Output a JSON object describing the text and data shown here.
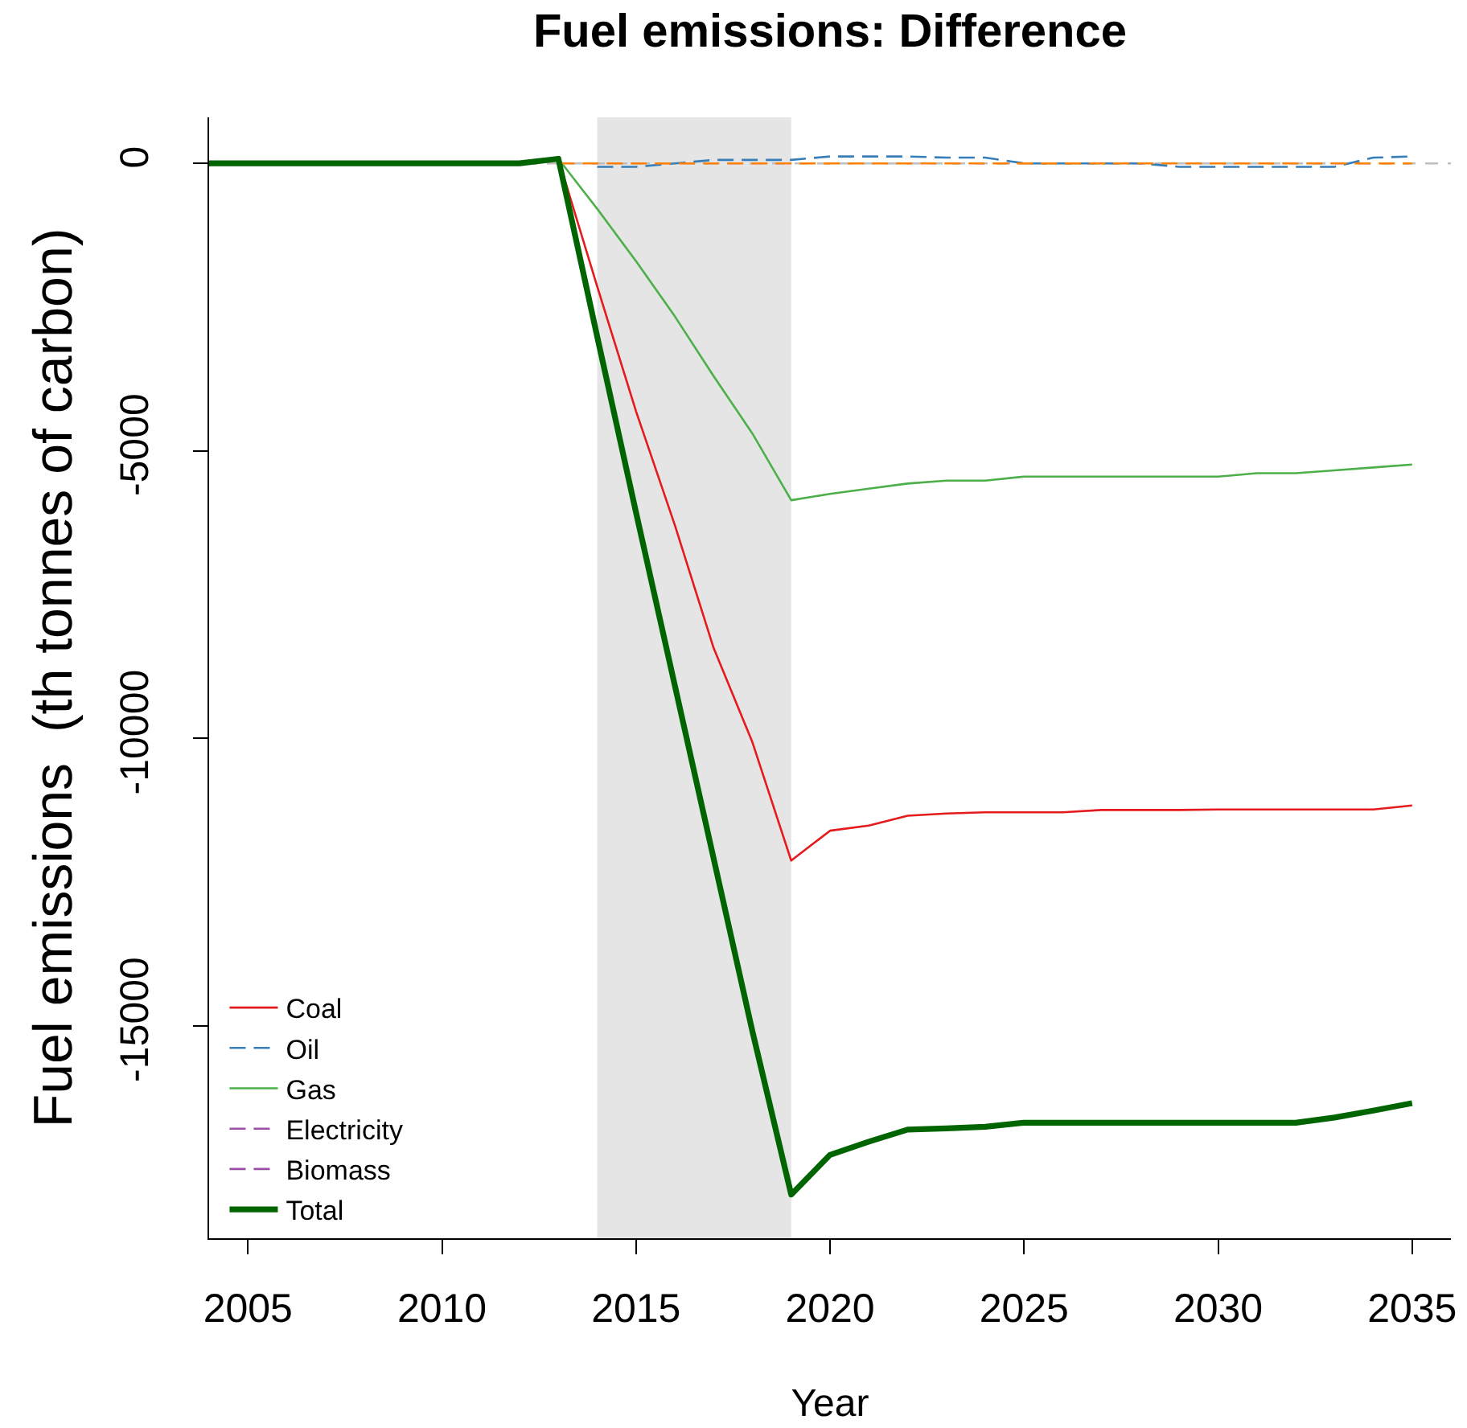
{
  "chart_data": {
    "type": "line",
    "title": "Fuel emissions: Difference",
    "xlabel": "Year",
    "ylabel": "Fuel emissions  (th tonnes of carbon)",
    "x": [
      2004,
      2005,
      2006,
      2007,
      2008,
      2009,
      2010,
      2011,
      2012,
      2013,
      2014,
      2015,
      2016,
      2017,
      2018,
      2019,
      2020,
      2021,
      2022,
      2023,
      2024,
      2025,
      2026,
      2027,
      2028,
      2029,
      2030,
      2031,
      2032,
      2033,
      2034,
      2035
    ],
    "series": [
      {
        "name": "Coal",
        "color": "#e41a1c",
        "line_style": "solid",
        "values": [
          null,
          null,
          null,
          null,
          null,
          null,
          null,
          null,
          null,
          80,
          -2140,
          -4310,
          -6290,
          -8430,
          -10070,
          -12130,
          -11610,
          -11520,
          -11350,
          -11310,
          -11290,
          -11290,
          -11290,
          -11250,
          -11250,
          -11250,
          -11240,
          -11240,
          -11240,
          -11240,
          -11240,
          -11170
        ]
      },
      {
        "name": "Oil",
        "color": "#377eb8",
        "line_style": "dashed",
        "values": [
          null,
          null,
          null,
          null,
          null,
          null,
          null,
          null,
          null,
          null,
          -60,
          -60,
          0,
          60,
          60,
          60,
          120,
          120,
          120,
          100,
          100,
          0,
          0,
          0,
          0,
          -60,
          -60,
          -60,
          -60,
          -60,
          100,
          120
        ]
      },
      {
        "name": "Gas",
        "color": "#4daf4a",
        "line_style": "solid",
        "values": [
          null,
          null,
          null,
          null,
          null,
          null,
          null,
          null,
          null,
          80,
          -790,
          -1700,
          -2660,
          -3700,
          -4700,
          -5860,
          -5750,
          -5660,
          -5570,
          -5520,
          -5520,
          -5450,
          -5450,
          -5450,
          -5450,
          -5450,
          -5450,
          -5390,
          -5390,
          -5340,
          -5290,
          -5240
        ]
      },
      {
        "name": "Electricity",
        "color": "#984ea3",
        "line_style": "dashed",
        "values": [
          null,
          null,
          null,
          null,
          null,
          null,
          null,
          null,
          null,
          null,
          null,
          null,
          null,
          null,
          null,
          null,
          null,
          null,
          null,
          null,
          null,
          null,
          null,
          null,
          null,
          null,
          null,
          null,
          null,
          null,
          null,
          null
        ]
      },
      {
        "name": "Biomass",
        "color": "#984ea3",
        "line_style": "dashed",
        "values": [
          null,
          null,
          null,
          null,
          null,
          null,
          null,
          null,
          null,
          null,
          null,
          null,
          null,
          null,
          null,
          null,
          null,
          null,
          null,
          null,
          null,
          null,
          null,
          null,
          null,
          null,
          null,
          null,
          null,
          null,
          null,
          null
        ]
      },
      {
        "color": "#ff7f00",
        "line_style": "dashed",
        "values": [
          null,
          null,
          null,
          null,
          null,
          null,
          null,
          null,
          null,
          0,
          0,
          0,
          0,
          0,
          0,
          0,
          0,
          0,
          0,
          0,
          0,
          0,
          0,
          0,
          0,
          0,
          0,
          0,
          0,
          0,
          0,
          0
        ]
      },
      {
        "name": "Total",
        "color": "#006400",
        "line_style": "solid",
        "values": [
          0,
          0,
          0,
          0,
          0,
          0,
          0,
          0,
          0,
          80,
          -3010,
          -6070,
          -9080,
          -12090,
          -15100,
          -17940,
          -17250,
          -17020,
          -16810,
          -16790,
          -16760,
          -16690,
          -16690,
          -16690,
          -16690,
          -16690,
          -16690,
          -16690,
          -16690,
          -16600,
          -16480,
          -16350
        ]
      }
    ],
    "xlim": [
      2004,
      2036
    ],
    "xticks": [
      2005,
      2010,
      2015,
      2020,
      2025,
      2030,
      2035
    ],
    "ylim": [
      -18700,
      800
    ],
    "yticks": [
      0,
      -5000,
      -10000,
      -15000
    ],
    "ref_lines": [
      {
        "axis": "y",
        "value": 0,
        "color": "#bebebe",
        "line_style": "dashed"
      }
    ],
    "bands": [
      {
        "axis": "x",
        "from": 2014,
        "to": 2019,
        "color": "#e5e5e5"
      }
    ],
    "grid": false,
    "legend": "bottom left"
  }
}
